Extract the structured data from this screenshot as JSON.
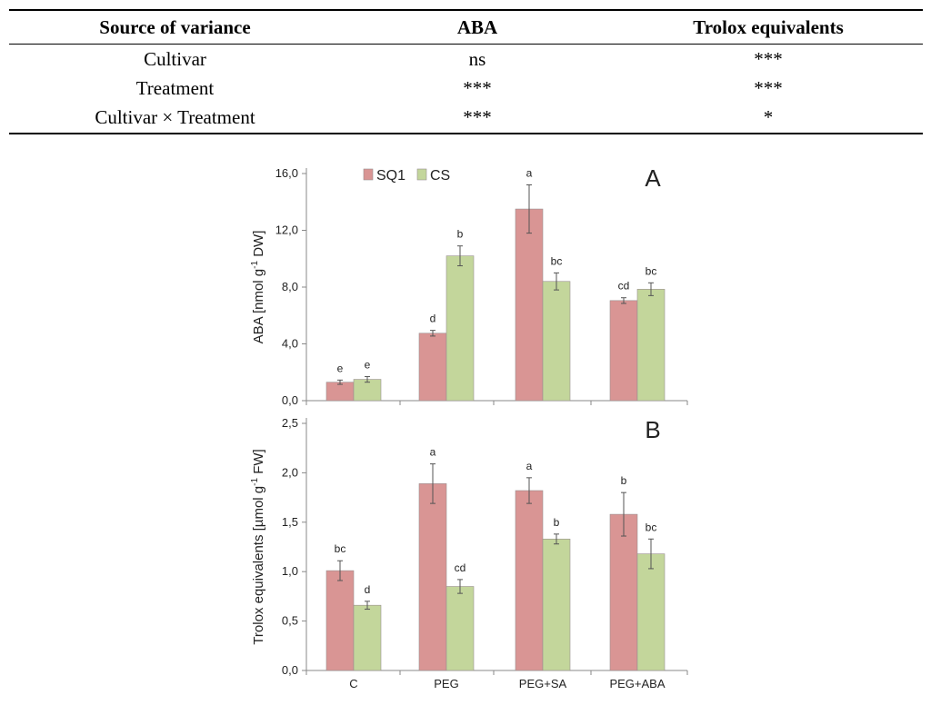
{
  "table": {
    "headers": [
      "Source of variance",
      "ABA",
      "Trolox equivalents"
    ],
    "rows": [
      [
        "Cultivar",
        "ns",
        "***"
      ],
      [
        "Treatment",
        "***",
        "***"
      ],
      [
        "Cultivar × Treatment",
        "***",
        "*"
      ]
    ]
  },
  "colors": {
    "SQ1": "#d99594",
    "CS": "#c3d69b",
    "error_bar": "#555555",
    "axis": "#888888"
  },
  "chart_data": [
    {
      "type": "bar",
      "panel_label": "A",
      "categories": [
        "C",
        "PEG",
        "PEG+SA",
        "PEG+ABA"
      ],
      "ylabel_main": "ABA [nmol g",
      "ylabel_sup": "-1",
      "ylabel_end": " DW]",
      "ylim": [
        0,
        16
      ],
      "yticks": [
        "0,0",
        "4,0",
        "8,0",
        "12,0",
        "16,0"
      ],
      "ytick_values": [
        0,
        4,
        8,
        12,
        16
      ],
      "legend_position": "top-left",
      "series": [
        {
          "name": "SQ1",
          "values": [
            1.3,
            4.75,
            13.5,
            7.05
          ],
          "errors": [
            0.15,
            0.2,
            1.7,
            0.2
          ],
          "letters": [
            "e",
            "d",
            "a",
            "cd"
          ]
        },
        {
          "name": "CS",
          "values": [
            1.5,
            10.2,
            8.4,
            7.85
          ],
          "errors": [
            0.2,
            0.7,
            0.6,
            0.45
          ],
          "letters": [
            "e",
            "b",
            "bc",
            "bc"
          ]
        }
      ]
    },
    {
      "type": "bar",
      "panel_label": "B",
      "categories": [
        "C",
        "PEG",
        "PEG+SA",
        "PEG+ABA"
      ],
      "ylabel_main": "Trolox equivalents [µmol g",
      "ylabel_sup": "-1",
      "ylabel_end": " FW]",
      "ylim": [
        0,
        2.5
      ],
      "yticks": [
        "0,0",
        "0,5",
        "1,0",
        "1,5",
        "2,0",
        "2,5"
      ],
      "ytick_values": [
        0,
        0.5,
        1.0,
        1.5,
        2.0,
        2.5
      ],
      "series": [
        {
          "name": "SQ1",
          "values": [
            1.01,
            1.89,
            1.82,
            1.58
          ],
          "errors": [
            0.1,
            0.2,
            0.13,
            0.22
          ],
          "letters": [
            "bc",
            "a",
            "a",
            "b"
          ]
        },
        {
          "name": "CS",
          "values": [
            0.66,
            0.85,
            1.33,
            1.18
          ],
          "errors": [
            0.04,
            0.07,
            0.05,
            0.15
          ],
          "letters": [
            "d",
            "cd",
            "b",
            "bc"
          ]
        }
      ]
    }
  ]
}
